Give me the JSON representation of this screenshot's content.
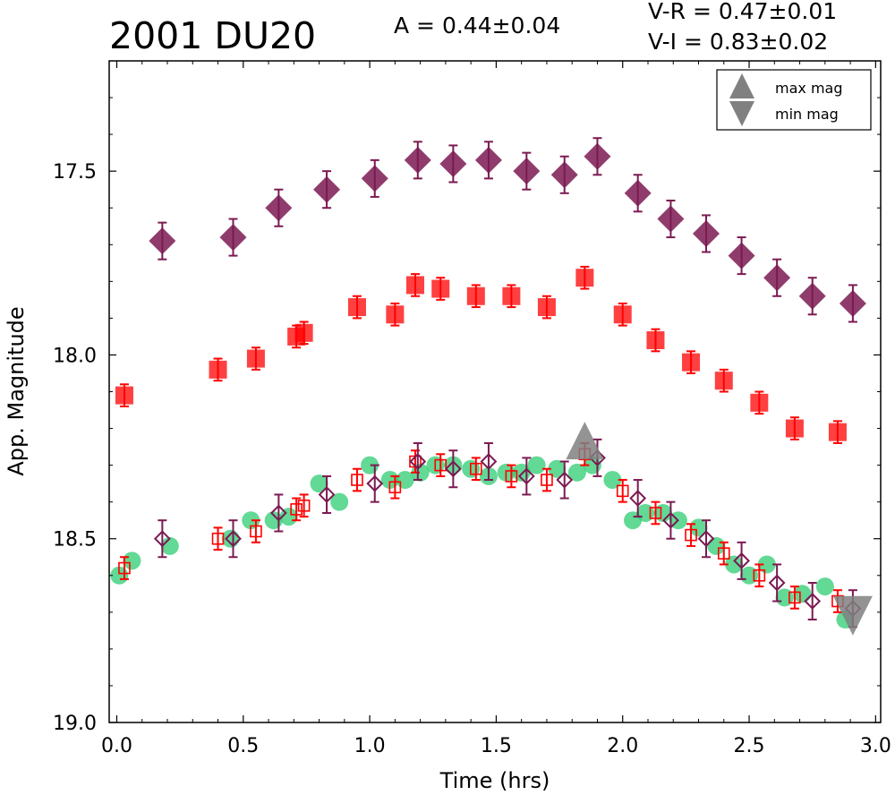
{
  "colors": {
    "purple": "#7b1a52",
    "red": "#ff0000",
    "green": "#2ecc71",
    "marker_gray": "#808080",
    "axis": "#000000"
  },
  "header": {
    "title": "2001 DU20",
    "amplitude": "A  = 0.44±0.04",
    "v_r": "V-R = 0.47±0.01",
    "v_i": "V-I  = 0.83±0.02"
  },
  "chart_data": {
    "type": "scatter",
    "title": "2001 DU20",
    "xlabel": "Time (hrs)",
    "ylabel": "App. Magnitude",
    "xlim": [
      -0.03,
      3.02
    ],
    "ylim": [
      19.0,
      17.2
    ],
    "y_inverted": true,
    "x_ticks": [
      0.0,
      0.5,
      1.0,
      1.5,
      2.0,
      2.5,
      3.0
    ],
    "x_tick_labels": [
      "0.0",
      "0.5",
      "1.0",
      "1.5",
      "2.0",
      "2.5",
      "3.0"
    ],
    "y_ticks": [
      17.5,
      18.0,
      18.5,
      19.0
    ],
    "y_tick_labels": [
      "17.5",
      "18.0",
      "18.5",
      "19.0"
    ],
    "grid": false,
    "legend_position": "top-right",
    "legend": [
      {
        "label": "max mag",
        "marker": "triangle-up"
      },
      {
        "label": "min mag",
        "marker": "triangle-down"
      }
    ],
    "series": [
      {
        "marker": "diamond-filled",
        "color": "#7b1a52",
        "points": [
          {
            "x": 0.18,
            "y": 17.69,
            "err": 0.05
          },
          {
            "x": 0.46,
            "y": 17.68,
            "err": 0.05
          },
          {
            "x": 0.64,
            "y": 17.6,
            "err": 0.05
          },
          {
            "x": 0.83,
            "y": 17.55,
            "err": 0.05
          },
          {
            "x": 1.02,
            "y": 17.52,
            "err": 0.05
          },
          {
            "x": 1.19,
            "y": 17.47,
            "err": 0.05
          },
          {
            "x": 1.33,
            "y": 17.48,
            "err": 0.05
          },
          {
            "x": 1.47,
            "y": 17.47,
            "err": 0.05
          },
          {
            "x": 1.62,
            "y": 17.5,
            "err": 0.05
          },
          {
            "x": 1.77,
            "y": 17.51,
            "err": 0.05
          },
          {
            "x": 1.9,
            "y": 17.46,
            "err": 0.05
          },
          {
            "x": 2.06,
            "y": 17.56,
            "err": 0.05
          },
          {
            "x": 2.19,
            "y": 17.63,
            "err": 0.05
          },
          {
            "x": 2.33,
            "y": 17.67,
            "err": 0.05
          },
          {
            "x": 2.47,
            "y": 17.73,
            "err": 0.05
          },
          {
            "x": 2.61,
            "y": 17.79,
            "err": 0.05
          },
          {
            "x": 2.75,
            "y": 17.84,
            "err": 0.05
          },
          {
            "x": 2.91,
            "y": 17.86,
            "err": 0.05
          }
        ]
      },
      {
        "marker": "square-filled",
        "color": "#ff0000",
        "points": [
          {
            "x": 0.03,
            "y": 18.11,
            "err": 0.03
          },
          {
            "x": 0.4,
            "y": 18.04,
            "err": 0.03
          },
          {
            "x": 0.55,
            "y": 18.01,
            "err": 0.03
          },
          {
            "x": 0.71,
            "y": 17.95,
            "err": 0.03
          },
          {
            "x": 0.74,
            "y": 17.94,
            "err": 0.03
          },
          {
            "x": 0.95,
            "y": 17.87,
            "err": 0.03
          },
          {
            "x": 1.1,
            "y": 17.89,
            "err": 0.03
          },
          {
            "x": 1.18,
            "y": 17.81,
            "err": 0.03
          },
          {
            "x": 1.28,
            "y": 17.82,
            "err": 0.03
          },
          {
            "x": 1.42,
            "y": 17.84,
            "err": 0.03
          },
          {
            "x": 1.56,
            "y": 17.84,
            "err": 0.03
          },
          {
            "x": 1.7,
            "y": 17.87,
            "err": 0.03
          },
          {
            "x": 1.85,
            "y": 17.79,
            "err": 0.03
          },
          {
            "x": 2.0,
            "y": 17.89,
            "err": 0.03
          },
          {
            "x": 2.13,
            "y": 17.96,
            "err": 0.03
          },
          {
            "x": 2.27,
            "y": 18.02,
            "err": 0.03
          },
          {
            "x": 2.4,
            "y": 18.07,
            "err": 0.03
          },
          {
            "x": 2.54,
            "y": 18.13,
            "err": 0.03
          },
          {
            "x": 2.68,
            "y": 18.2,
            "err": 0.03
          },
          {
            "x": 2.85,
            "y": 18.21,
            "err": 0.03
          }
        ]
      },
      {
        "marker": "circle-filled",
        "color": "#2ecc71",
        "points": [
          {
            "x": 0.01,
            "y": 18.6
          },
          {
            "x": 0.06,
            "y": 18.56
          },
          {
            "x": 0.21,
            "y": 18.52
          },
          {
            "x": 0.45,
            "y": 18.5
          },
          {
            "x": 0.53,
            "y": 18.45
          },
          {
            "x": 0.62,
            "y": 18.45
          },
          {
            "x": 0.68,
            "y": 18.44
          },
          {
            "x": 0.8,
            "y": 18.35
          },
          {
            "x": 0.88,
            "y": 18.4
          },
          {
            "x": 1.0,
            "y": 18.3
          },
          {
            "x": 1.08,
            "y": 18.34
          },
          {
            "x": 1.14,
            "y": 18.34
          },
          {
            "x": 1.2,
            "y": 18.32
          },
          {
            "x": 1.26,
            "y": 18.3
          },
          {
            "x": 1.33,
            "y": 18.3
          },
          {
            "x": 1.4,
            "y": 18.31
          },
          {
            "x": 1.47,
            "y": 18.33
          },
          {
            "x": 1.54,
            "y": 18.32
          },
          {
            "x": 1.6,
            "y": 18.32
          },
          {
            "x": 1.66,
            "y": 18.3
          },
          {
            "x": 1.74,
            "y": 18.31
          },
          {
            "x": 1.82,
            "y": 18.32
          },
          {
            "x": 1.88,
            "y": 18.3
          },
          {
            "x": 1.96,
            "y": 18.34
          },
          {
            "x": 2.04,
            "y": 18.45
          },
          {
            "x": 2.09,
            "y": 18.43
          },
          {
            "x": 2.16,
            "y": 18.43
          },
          {
            "x": 2.22,
            "y": 18.45
          },
          {
            "x": 2.3,
            "y": 18.47
          },
          {
            "x": 2.37,
            "y": 18.52
          },
          {
            "x": 2.44,
            "y": 18.57
          },
          {
            "x": 2.5,
            "y": 18.6
          },
          {
            "x": 2.57,
            "y": 18.57
          },
          {
            "x": 2.64,
            "y": 18.66
          },
          {
            "x": 2.71,
            "y": 18.65
          },
          {
            "x": 2.8,
            "y": 18.63
          },
          {
            "x": 2.88,
            "y": 18.72
          }
        ]
      },
      {
        "marker": "square-open",
        "color": "#ff0000",
        "points": [
          {
            "x": 0.03,
            "y": 18.58,
            "err": 0.03
          },
          {
            "x": 0.4,
            "y": 18.5,
            "err": 0.03
          },
          {
            "x": 0.55,
            "y": 18.48,
            "err": 0.03
          },
          {
            "x": 0.71,
            "y": 18.42,
            "err": 0.03
          },
          {
            "x": 0.74,
            "y": 18.41,
            "err": 0.03
          },
          {
            "x": 0.95,
            "y": 18.34,
            "err": 0.03
          },
          {
            "x": 1.1,
            "y": 18.36,
            "err": 0.03
          },
          {
            "x": 1.18,
            "y": 18.29,
            "err": 0.03
          },
          {
            "x": 1.28,
            "y": 18.3,
            "err": 0.03
          },
          {
            "x": 1.42,
            "y": 18.31,
            "err": 0.03
          },
          {
            "x": 1.56,
            "y": 18.33,
            "err": 0.03
          },
          {
            "x": 1.7,
            "y": 18.34,
            "err": 0.03
          },
          {
            "x": 1.85,
            "y": 18.27,
            "err": 0.03
          },
          {
            "x": 2.0,
            "y": 18.37,
            "err": 0.03
          },
          {
            "x": 2.13,
            "y": 18.43,
            "err": 0.03
          },
          {
            "x": 2.27,
            "y": 18.49,
            "err": 0.03
          },
          {
            "x": 2.4,
            "y": 18.54,
            "err": 0.03
          },
          {
            "x": 2.54,
            "y": 18.6,
            "err": 0.03
          },
          {
            "x": 2.68,
            "y": 18.66,
            "err": 0.03
          },
          {
            "x": 2.85,
            "y": 18.67,
            "err": 0.03
          }
        ]
      },
      {
        "marker": "diamond-open",
        "color": "#7b1a52",
        "points": [
          {
            "x": 0.18,
            "y": 18.5,
            "err": 0.05
          },
          {
            "x": 0.46,
            "y": 18.5,
            "err": 0.05
          },
          {
            "x": 0.64,
            "y": 18.43,
            "err": 0.05
          },
          {
            "x": 0.83,
            "y": 18.38,
            "err": 0.05
          },
          {
            "x": 1.02,
            "y": 18.35,
            "err": 0.05
          },
          {
            "x": 1.19,
            "y": 18.29,
            "err": 0.05
          },
          {
            "x": 1.33,
            "y": 18.31,
            "err": 0.05
          },
          {
            "x": 1.47,
            "y": 18.29,
            "err": 0.05
          },
          {
            "x": 1.62,
            "y": 18.33,
            "err": 0.05
          },
          {
            "x": 1.77,
            "y": 18.34,
            "err": 0.05
          },
          {
            "x": 1.9,
            "y": 18.28,
            "err": 0.05
          },
          {
            "x": 2.06,
            "y": 18.39,
            "err": 0.05
          },
          {
            "x": 2.19,
            "y": 18.45,
            "err": 0.05
          },
          {
            "x": 2.33,
            "y": 18.5,
            "err": 0.05
          },
          {
            "x": 2.47,
            "y": 18.56,
            "err": 0.05
          },
          {
            "x": 2.61,
            "y": 18.62,
            "err": 0.05
          },
          {
            "x": 2.75,
            "y": 18.67,
            "err": 0.05
          },
          {
            "x": 2.91,
            "y": 18.69,
            "err": 0.05
          }
        ]
      }
    ],
    "extrema": {
      "max_mag": {
        "x": 1.85,
        "y": 18.25
      },
      "min_mag": {
        "x": 2.91,
        "y": 18.69
      }
    }
  }
}
